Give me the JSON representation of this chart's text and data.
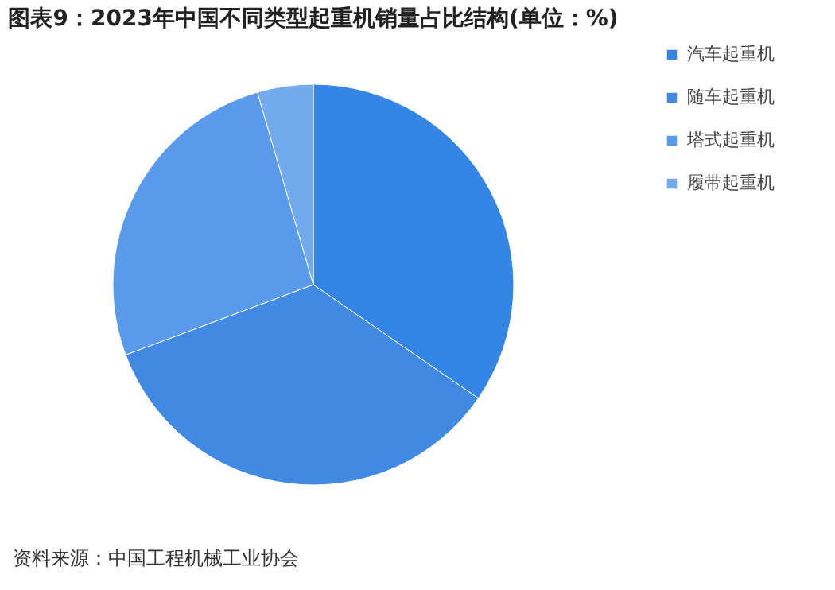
{
  "chart_data": {
    "type": "pie",
    "title": "图表9：2023年中国不同类型起重机销量占比结构(单位：%)",
    "categories": [
      "汽车起重机",
      "随车起重机",
      "塔式起重机",
      "履带起重机"
    ],
    "values": [
      34.6,
      34.7,
      26.2,
      4.5
    ],
    "colors": [
      "#3585e5",
      "#4289e3",
      "#5a9aea",
      "#72aaed"
    ],
    "legend": "right",
    "annotations": [
      "资料来源：中国工程机械工业协会"
    ]
  }
}
